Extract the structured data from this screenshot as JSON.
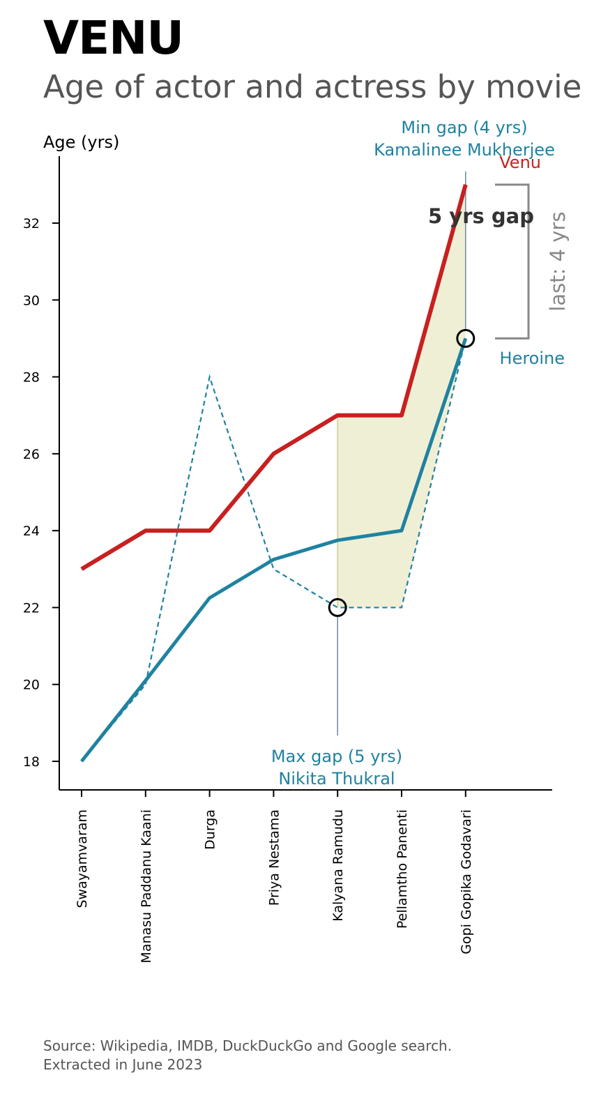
{
  "title": "VENU",
  "subtitle": "Age of actor and actress by movie",
  "source": {
    "line1": "Source: Wikipedia, IMDB, DuckDuckGo and Google search.",
    "line2": "Extracted in June 2023"
  },
  "colors": {
    "actor": "#c82020",
    "heroine": "#1f82a0",
    "gap_fill": "#efefd6",
    "bracket": "#888888",
    "axis": "#000000"
  },
  "chart_data": {
    "type": "line",
    "title": "VENU",
    "ylabel": "Age (yrs)",
    "ylim": [
      17.2,
      33.5
    ],
    "yticks": [
      18,
      20,
      22,
      24,
      26,
      28,
      30,
      32
    ],
    "categories": [
      "Swayamvaram",
      "Manasu Paddanu Kaani",
      "Durga",
      "Priya Nestama",
      "Kalyana Ramudu",
      "Pellamtho Panenti",
      "Gopi Gopika Godavari"
    ],
    "series": [
      {
        "name": "Venu",
        "role": "actor",
        "style": "solid",
        "values": [
          23,
          24,
          24,
          26,
          27,
          27,
          33
        ]
      },
      {
        "name": "Heroine",
        "role": "heroine",
        "style": "dashed",
        "values": [
          18,
          20,
          28,
          23,
          22,
          22,
          29
        ]
      },
      {
        "name": "Heroine",
        "role": "heroine-trend",
        "style": "solid",
        "values": [
          18,
          20.1,
          22.25,
          23.25,
          23.75,
          24,
          29
        ]
      }
    ],
    "shaded_gap": {
      "from_category_index": 4,
      "to_category_index": 6
    },
    "annotations": {
      "min_gap_line1": "Min gap (4 yrs)",
      "min_gap_line2": "Kamalinee Mukherjee",
      "max_gap_line1": "Max gap (5 yrs)",
      "max_gap_line2": "Nikita Thukral",
      "gap_label": "5 yrs gap",
      "last_label": "last: 4 yrs",
      "actor_label": "Venu",
      "heroine_label": "Heroine",
      "min_gap_index": 6,
      "max_gap_index": 4
    }
  }
}
